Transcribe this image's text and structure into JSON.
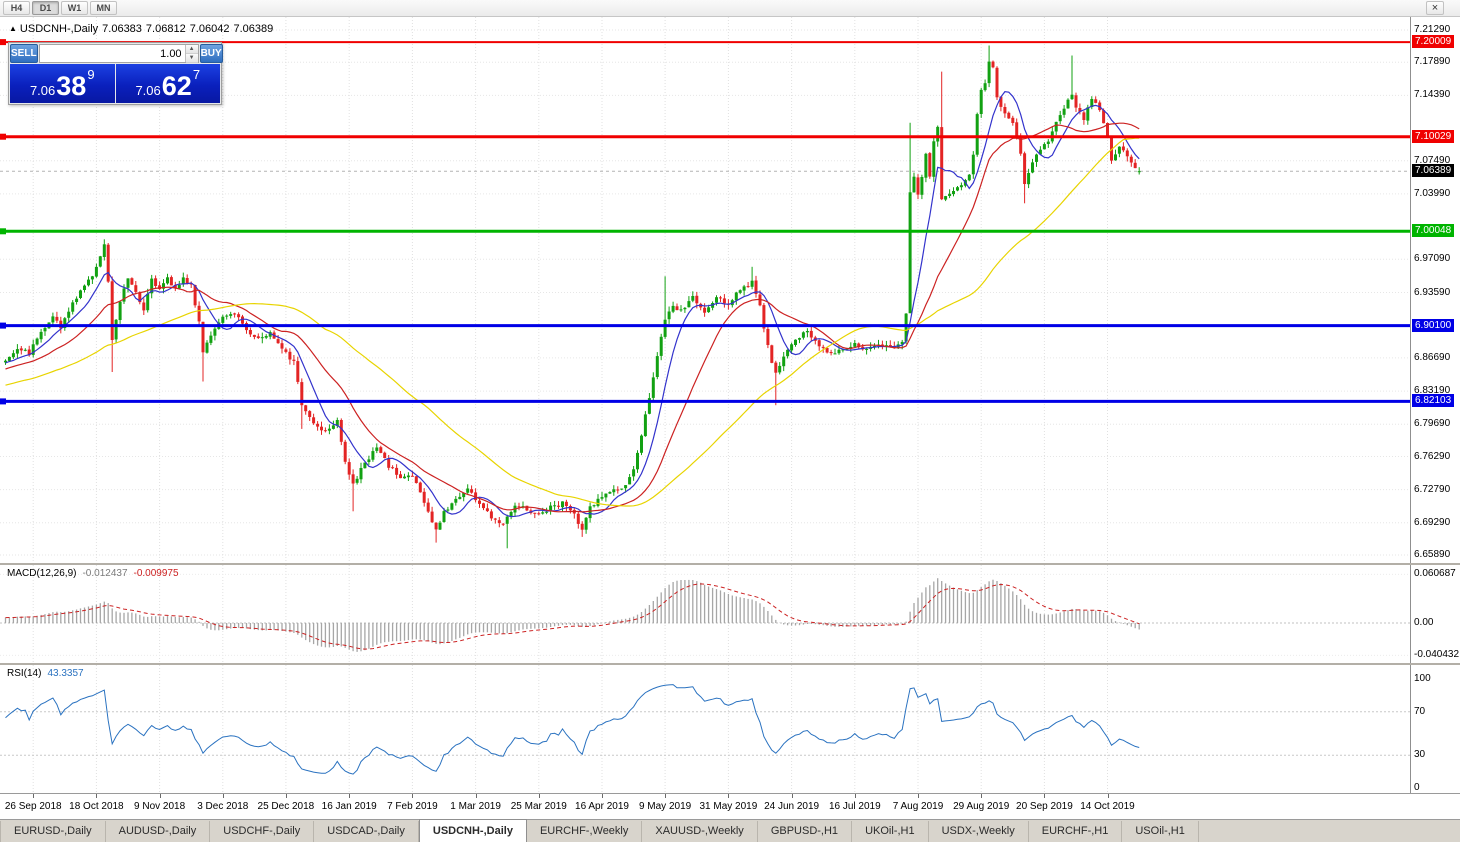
{
  "toolbar": {
    "buttons": [
      "H4",
      "D1",
      "W1",
      "MN"
    ],
    "active": "D1",
    "close_label": "×"
  },
  "chart_header": {
    "arrow": "▲",
    "symbol": "USDCNH-,Daily",
    "open": "7.06383",
    "high": "7.06812",
    "low": "7.06042",
    "close": "7.06389"
  },
  "trade_panel": {
    "sell_label": "SELL",
    "buy_label": "BUY",
    "volume": "1.00",
    "sell_price": {
      "base": "7.06",
      "big": "38",
      "sup": "9"
    },
    "buy_price": {
      "base": "7.06",
      "big": "62",
      "sup": "7"
    }
  },
  "price_axis": {
    "regular": [
      "7.21290",
      "7.17890",
      "7.14390",
      "7.07490",
      "7.03990",
      "6.97090",
      "6.93590",
      "6.86690",
      "6.83190",
      "6.79690",
      "6.76290",
      "6.72790",
      "6.69290",
      "6.65890"
    ],
    "levels": [
      {
        "value": "7.20009",
        "color": "#f00000",
        "width": 2
      },
      {
        "value": "7.10029",
        "color": "#f00000",
        "width": 3
      },
      {
        "value": "7.00048",
        "color": "#00b400",
        "width": 3
      },
      {
        "value": "6.90100",
        "color": "#0000e6",
        "width": 3
      },
      {
        "value": "6.82103",
        "color": "#0000e6",
        "width": 3
      }
    ],
    "current": {
      "value": "7.06389",
      "bg": "#000000"
    }
  },
  "macd_panel": {
    "name": "MACD(12,26,9)",
    "value_main": "-0.012437",
    "value_signal": "-0.009975",
    "axis": [
      "0.060687",
      "0.00",
      "-0.040432"
    ]
  },
  "rsi_panel": {
    "name": "RSI(14)",
    "value": "43.3357",
    "axis": [
      "100",
      "70",
      "30",
      "0"
    ],
    "levels": [
      70,
      30
    ]
  },
  "date_axis": {
    "labels": [
      "26 Sep 2018",
      "18 Oct 2018",
      "9 Nov 2018",
      "3 Dec 2018",
      "25 Dec 2018",
      "16 Jan 2019",
      "7 Feb 2019",
      "1 Mar 2019",
      "25 Mar 2019",
      "16 Apr 2019",
      "9 May 2019",
      "31 May 2019",
      "24 Jun 2019",
      "16 Jul 2019",
      "7 Aug 2019",
      "29 Aug 2019",
      "20 Sep 2019",
      "14 Oct 2019"
    ],
    "first_candle_index": 7,
    "step": 16
  },
  "tabs": [
    {
      "label": "EURUSD-,Daily",
      "active": false
    },
    {
      "label": "AUDUSD-,Daily",
      "active": false
    },
    {
      "label": "USDCHF-,Daily",
      "active": false
    },
    {
      "label": "USDCAD-,Daily",
      "active": false
    },
    {
      "label": "USDCNH-,Daily",
      "active": true
    },
    {
      "label": "EURCHF-,Weekly",
      "active": false
    },
    {
      "label": "XAUUSD-,Weekly",
      "active": false
    },
    {
      "label": "GBPUSD-,H1",
      "active": false
    },
    {
      "label": "UKOil-,H1",
      "active": false
    },
    {
      "label": "USDX-,Weekly",
      "active": false
    },
    {
      "label": "EURCHF-,H1",
      "active": false
    },
    {
      "label": "USOil-,H1",
      "active": false
    }
  ],
  "chart_data": {
    "type": "candlestick",
    "symbol": "USDCNH",
    "timeframe": "Daily",
    "title": "USDCNH-,Daily",
    "ohlc_last": {
      "open": 7.06383,
      "high": 7.06812,
      "low": 7.06042,
      "close": 7.06389
    },
    "num_candles": 288,
    "warmup_candles": 60,
    "noise": 0.005,
    "colors": {
      "up": "#12a112",
      "down": "#e32424",
      "histogram": "#a6a6a6",
      "signal": "#cc2222",
      "rsi": "#2a72c0",
      "current_line": "#b4b4b4"
    },
    "moving_averages": [
      {
        "period": 8,
        "color": "#3333cc"
      },
      {
        "period": 21,
        "color": "#cc2222"
      },
      {
        "period": 55,
        "color": "#e8d400"
      }
    ],
    "indicators": {
      "macd": [
        12,
        26,
        9
      ],
      "rsi": 14
    },
    "price_anchors": [
      [
        0,
        6.865
      ],
      [
        3,
        6.878
      ],
      [
        6,
        6.872
      ],
      [
        9,
        6.895
      ],
      [
        12,
        6.912
      ],
      [
        14,
        6.898
      ],
      [
        17,
        6.925
      ],
      [
        20,
        6.942
      ],
      [
        23,
        6.962
      ],
      [
        25,
        6.985
      ],
      [
        26,
        6.948
      ],
      [
        27,
        6.888
      ],
      [
        29,
        6.928
      ],
      [
        31,
        6.952
      ],
      [
        33,
        6.938
      ],
      [
        35,
        6.918
      ],
      [
        37,
        6.952
      ],
      [
        39,
        6.938
      ],
      [
        41,
        6.95
      ],
      [
        43,
        6.94
      ],
      [
        45,
        6.952
      ],
      [
        47,
        6.942
      ],
      [
        49,
        6.905
      ],
      [
        50,
        6.875
      ],
      [
        52,
        6.892
      ],
      [
        55,
        6.908
      ],
      [
        58,
        6.915
      ],
      [
        61,
        6.897
      ],
      [
        64,
        6.887
      ],
      [
        67,
        6.893
      ],
      [
        70,
        6.879
      ],
      [
        73,
        6.862
      ],
      [
        75,
        6.818
      ],
      [
        78,
        6.798
      ],
      [
        81,
        6.79
      ],
      [
        84,
        6.802
      ],
      [
        86,
        6.758
      ],
      [
        88,
        6.732
      ],
      [
        91,
        6.757
      ],
      [
        94,
        6.772
      ],
      [
        97,
        6.753
      ],
      [
        100,
        6.74
      ],
      [
        103,
        6.744
      ],
      [
        106,
        6.714
      ],
      [
        109,
        6.684
      ],
      [
        111,
        6.704
      ],
      [
        114,
        6.718
      ],
      [
        117,
        6.729
      ],
      [
        120,
        6.713
      ],
      [
        123,
        6.699
      ],
      [
        126,
        6.693
      ],
      [
        129,
        6.713
      ],
      [
        132,
        6.707
      ],
      [
        135,
        6.701
      ],
      [
        138,
        6.709
      ],
      [
        141,
        6.714
      ],
      [
        144,
        6.701
      ],
      [
        146,
        6.684
      ],
      [
        148,
        6.71
      ],
      [
        151,
        6.721
      ],
      [
        154,
        6.727
      ],
      [
        157,
        6.731
      ],
      [
        159,
        6.747
      ],
      [
        161,
        6.787
      ],
      [
        163,
        6.827
      ],
      [
        165,
        6.869
      ],
      [
        167,
        6.906
      ],
      [
        169,
        6.921
      ],
      [
        171,
        6.916
      ],
      [
        174,
        6.931
      ],
      [
        177,
        6.914
      ],
      [
        180,
        6.93
      ],
      [
        183,
        6.924
      ],
      [
        186,
        6.94
      ],
      [
        189,
        6.946
      ],
      [
        191,
        6.92
      ],
      [
        193,
        6.879
      ],
      [
        195,
        6.849
      ],
      [
        197,
        6.867
      ],
      [
        200,
        6.887
      ],
      [
        203,
        6.894
      ],
      [
        206,
        6.881
      ],
      [
        209,
        6.871
      ],
      [
        212,
        6.877
      ],
      [
        215,
        6.881
      ],
      [
        218,
        6.874
      ],
      [
        221,
        6.881
      ],
      [
        224,
        6.877
      ],
      [
        227,
        6.884
      ],
      [
        228,
        6.916
      ],
      [
        229,
        7.04
      ],
      [
        230,
        7.06
      ],
      [
        231,
        7.038
      ],
      [
        232,
        7.06
      ],
      [
        233,
        7.082
      ],
      [
        234,
        7.058
      ],
      [
        235,
        7.096
      ],
      [
        236,
        7.11
      ],
      [
        237,
        7.034
      ],
      [
        238,
        7.036
      ],
      [
        240,
        7.044
      ],
      [
        242,
        7.05
      ],
      [
        244,
        7.06
      ],
      [
        245,
        7.08
      ],
      [
        246,
        7.126
      ],
      [
        247,
        7.148
      ],
      [
        248,
        7.158
      ],
      [
        249,
        7.178
      ],
      [
        250,
        7.175
      ],
      [
        251,
        7.144
      ],
      [
        253,
        7.124
      ],
      [
        255,
        7.113
      ],
      [
        257,
        7.084
      ],
      [
        258,
        7.05
      ],
      [
        260,
        7.073
      ],
      [
        262,
        7.088
      ],
      [
        264,
        7.093
      ],
      [
        266,
        7.117
      ],
      [
        268,
        7.131
      ],
      [
        270,
        7.147
      ],
      [
        271,
        7.133
      ],
      [
        273,
        7.119
      ],
      [
        275,
        7.141
      ],
      [
        277,
        7.127
      ],
      [
        279,
        7.099
      ],
      [
        280,
        7.074
      ],
      [
        282,
        7.091
      ],
      [
        284,
        7.079
      ],
      [
        286,
        7.069
      ],
      [
        287,
        7.0639
      ]
    ],
    "wick_events": [
      [
        25,
        null,
        6.992
      ],
      [
        27,
        6.852,
        null
      ],
      [
        50,
        6.842,
        null
      ],
      [
        75,
        6.792,
        null
      ],
      [
        88,
        6.705,
        null
      ],
      [
        109,
        6.672,
        null
      ],
      [
        127,
        6.666,
        null
      ],
      [
        146,
        6.678,
        null
      ],
      [
        167,
        null,
        6.953
      ],
      [
        189,
        null,
        6.963
      ],
      [
        195,
        6.817,
        null
      ],
      [
        229,
        null,
        7.115
      ],
      [
        237,
        null,
        7.169
      ],
      [
        249,
        null,
        7.1965
      ],
      [
        258,
        7.03,
        null
      ],
      [
        270,
        null,
        7.186
      ]
    ]
  }
}
